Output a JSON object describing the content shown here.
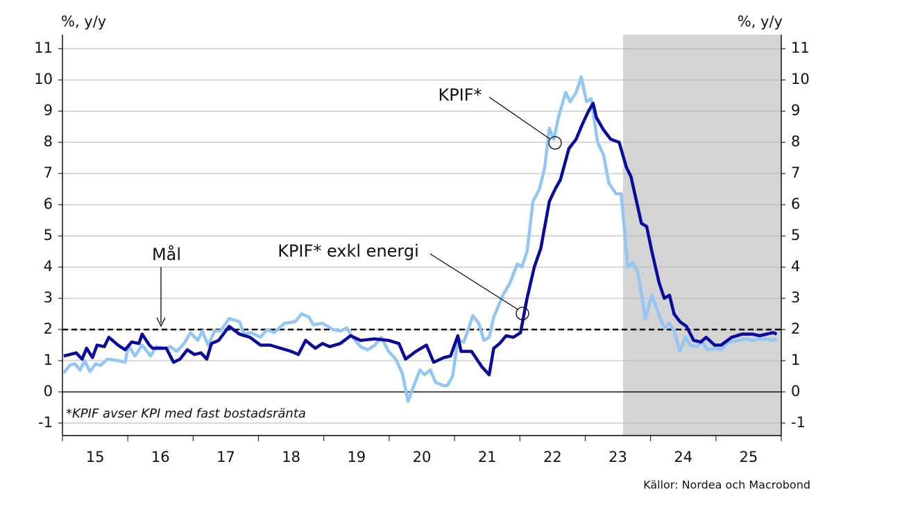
{
  "chart_data": {
    "type": "line",
    "ylabel": "%, y/y",
    "y2label": "%, y/y",
    "footnote": "*KPIF avser KPI med fast bostadsränta",
    "source": "Källor: Nordea och Macrobond",
    "xlim": [
      2015,
      2026
    ],
    "xticks": [
      {
        "value": 2015.5,
        "label": "15"
      },
      {
        "value": 2016.5,
        "label": "16"
      },
      {
        "value": 2017.5,
        "label": "17"
      },
      {
        "value": 2018.5,
        "label": "18"
      },
      {
        "value": 2019.5,
        "label": "19"
      },
      {
        "value": 2020.5,
        "label": "20"
      },
      {
        "value": 2021.5,
        "label": "21"
      },
      {
        "value": 2022.5,
        "label": "22"
      },
      {
        "value": 2023.5,
        "label": "23"
      },
      {
        "value": 2024.5,
        "label": "24"
      },
      {
        "value": 2025.5,
        "label": "25"
      }
    ],
    "ylim": [
      -1.4,
      11.45
    ],
    "yticks": [
      -1,
      0,
      1,
      2,
      3,
      4,
      5,
      6,
      7,
      8,
      9,
      10,
      11
    ],
    "grid": true,
    "target": 2,
    "target_label": "Mål",
    "shade": {
      "from": 2023.58,
      "to": 2026,
      "color": "#d4d4d4"
    },
    "series": [
      {
        "name": "KPIF*",
        "color": "#92c6f4",
        "x": [
          2015.02,
          2015.11,
          2015.19,
          2015.27,
          2015.34,
          2015.42,
          2015.51,
          2015.58,
          2015.69,
          2015.85,
          2015.96,
          2016.01,
          2016.11,
          2016.22,
          2016.35,
          2016.43,
          2016.57,
          2016.65,
          2016.75,
          2016.86,
          2016.96,
          2017.07,
          2017.14,
          2017.23,
          2017.33,
          2017.42,
          2017.55,
          2017.71,
          2017.78,
          2017.89,
          2018.03,
          2018.13,
          2018.24,
          2018.4,
          2018.56,
          2018.66,
          2018.77,
          2018.84,
          2018.98,
          2019.14,
          2019.25,
          2019.35,
          2019.46,
          2019.56,
          2019.67,
          2019.78,
          2019.88,
          2019.99,
          2020.1,
          2020.2,
          2020.29,
          2020.36,
          2020.47,
          2020.54,
          2020.63,
          2020.71,
          2020.84,
          2020.89,
          2020.97,
          2021.05,
          2021.14,
          2021.21,
          2021.28,
          2021.37,
          2021.45,
          2021.53,
          2021.6,
          2021.74,
          2021.85,
          2021.96,
          2022.03,
          2022.11,
          2022.2,
          2022.3,
          2022.38,
          2022.45,
          2022.52,
          2022.59,
          2022.7,
          2022.77,
          2022.86,
          2022.94,
          2023.02,
          2023.09,
          2023.19,
          2023.28,
          2023.36,
          2023.47,
          2023.55,
          2023.65,
          2023.73,
          2023.81,
          2023.92,
          2024.02,
          2024.13,
          2024.21,
          2024.29,
          2024.36,
          2024.45,
          2024.53,
          2024.61,
          2024.71,
          2024.79,
          2024.87,
          2024.98,
          2025.08,
          2025.19,
          2025.35,
          2025.46,
          2025.56,
          2025.67,
          2025.77,
          2025.88,
          2025.93
        ],
        "values": [
          0.6,
          0.85,
          0.9,
          0.7,
          1.0,
          0.65,
          0.9,
          0.85,
          1.05,
          1.0,
          0.95,
          1.5,
          1.15,
          1.5,
          1.15,
          1.45,
          1.4,
          1.45,
          1.3,
          1.55,
          1.9,
          1.65,
          1.95,
          1.5,
          1.95,
          1.95,
          2.35,
          2.25,
          1.85,
          1.9,
          1.75,
          2.0,
          1.9,
          2.2,
          2.25,
          2.5,
          2.4,
          2.15,
          2.2,
          2.0,
          1.95,
          2.05,
          1.7,
          1.45,
          1.35,
          1.5,
          1.75,
          1.3,
          1.05,
          0.6,
          -0.3,
          0.1,
          0.7,
          0.55,
          0.7,
          0.3,
          0.2,
          0.2,
          0.5,
          1.65,
          1.6,
          2.0,
          2.45,
          2.2,
          1.65,
          1.75,
          2.4,
          3.1,
          3.5,
          4.1,
          4.0,
          4.5,
          6.1,
          6.5,
          7.2,
          8.45,
          8.1,
          8.8,
          9.6,
          9.3,
          9.6,
          10.1,
          9.3,
          9.4,
          8.0,
          7.6,
          6.7,
          6.35,
          6.35,
          4.0,
          4.15,
          3.8,
          2.35,
          3.1,
          2.45,
          2.05,
          2.2,
          1.95,
          1.3,
          1.75,
          1.5,
          1.45,
          1.6,
          1.35,
          1.4,
          1.35,
          1.6,
          1.65,
          1.7,
          1.65,
          1.7,
          1.7,
          1.65,
          1.7
        ]
      },
      {
        "name": "KPIF* exkl energi",
        "color": "#0a0a9c",
        "x": [
          2015.02,
          2015.21,
          2015.3,
          2015.37,
          2015.46,
          2015.53,
          2015.64,
          2015.71,
          2015.85,
          2015.96,
          2016.06,
          2016.17,
          2016.22,
          2016.33,
          2016.38,
          2016.59,
          2016.7,
          2016.8,
          2016.91,
          2017.02,
          2017.12,
          2017.21,
          2017.28,
          2017.39,
          2017.55,
          2017.71,
          2017.87,
          2018.03,
          2018.18,
          2018.34,
          2018.5,
          2018.61,
          2018.72,
          2018.87,
          2018.98,
          2019.09,
          2019.25,
          2019.41,
          2019.56,
          2019.78,
          2019.99,
          2020.15,
          2020.25,
          2020.41,
          2020.57,
          2020.68,
          2020.84,
          2020.94,
          2021.05,
          2021.1,
          2021.26,
          2021.42,
          2021.53,
          2021.6,
          2021.69,
          2021.79,
          2021.9,
          2022.01,
          2022.11,
          2022.22,
          2022.32,
          2022.45,
          2022.54,
          2022.62,
          2022.75,
          2022.86,
          2022.96,
          2023.05,
          2023.12,
          2023.17,
          2023.28,
          2023.39,
          2023.52,
          2023.63,
          2023.7,
          2023.86,
          2023.94,
          2024.02,
          2024.13,
          2024.21,
          2024.29,
          2024.36,
          2024.45,
          2024.55,
          2024.66,
          2024.77,
          2024.85,
          2024.98,
          2025.08,
          2025.24,
          2025.4,
          2025.56,
          2025.67,
          2025.77,
          2025.88,
          2025.93
        ],
        "values": [
          1.15,
          1.25,
          1.05,
          1.4,
          1.1,
          1.5,
          1.45,
          1.75,
          1.5,
          1.35,
          1.6,
          1.55,
          1.85,
          1.5,
          1.4,
          1.4,
          0.95,
          1.05,
          1.35,
          1.2,
          1.25,
          1.05,
          1.55,
          1.65,
          2.1,
          1.85,
          1.75,
          1.5,
          1.5,
          1.4,
          1.3,
          1.2,
          1.65,
          1.4,
          1.55,
          1.45,
          1.55,
          1.8,
          1.65,
          1.7,
          1.65,
          1.55,
          1.05,
          1.3,
          1.5,
          0.95,
          1.1,
          1.15,
          1.8,
          1.3,
          1.3,
          0.8,
          0.55,
          1.4,
          1.55,
          1.8,
          1.75,
          1.9,
          3.0,
          4.0,
          4.6,
          6.1,
          6.5,
          6.8,
          7.8,
          8.1,
          8.6,
          9.0,
          9.25,
          8.8,
          8.4,
          8.1,
          8.0,
          7.2,
          6.9,
          5.4,
          5.3,
          4.5,
          3.5,
          3.0,
          3.1,
          2.5,
          2.25,
          2.1,
          1.65,
          1.6,
          1.75,
          1.5,
          1.5,
          1.75,
          1.85,
          1.85,
          1.8,
          1.85,
          1.9,
          1.85
        ]
      }
    ]
  }
}
